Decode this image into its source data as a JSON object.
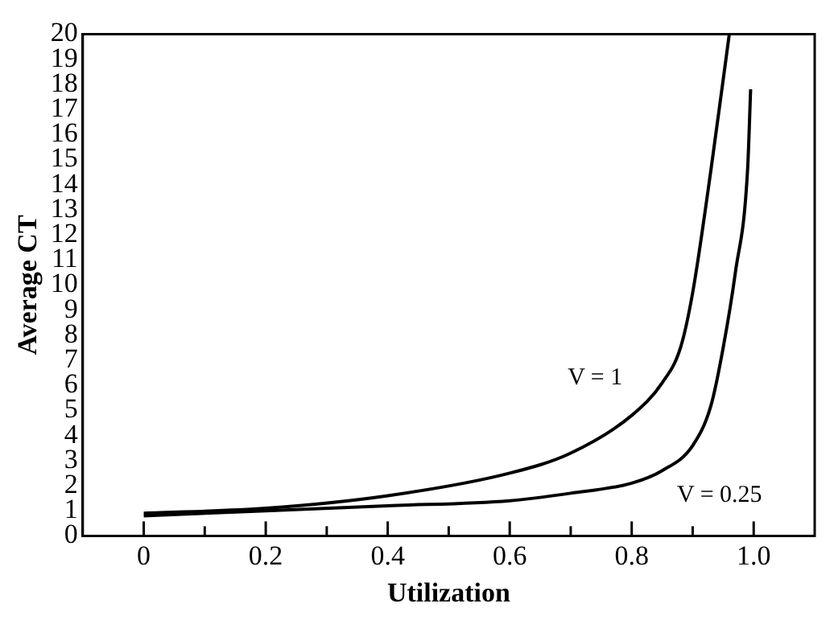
{
  "chart_data": {
    "type": "line",
    "xlabel": "Utilization",
    "ylabel": "Average CT",
    "series": [
      {
        "color": "#000000",
        "x": [
          0,
          0.2,
          0.4,
          0.6,
          0.7,
          0.8,
          0.85,
          0.88,
          0.9,
          0.93,
          0.96
        ],
        "values": [
          0.9,
          1.1,
          1.6,
          2.5,
          3.3,
          4.8,
          6.1,
          7.5,
          9.7,
          14.6,
          20
        ]
      },
      {
        "color": "#000000",
        "x": [
          0,
          0.2,
          0.4,
          0.6,
          0.7,
          0.8,
          0.85,
          0.9,
          0.93,
          0.95,
          0.97,
          0.99,
          0.995
        ],
        "values": [
          0.8,
          1.0,
          1.2,
          1.4,
          1.7,
          2.1,
          2.6,
          3.6,
          5.2,
          7.5,
          10.5,
          14.6,
          17.8
        ]
      }
    ],
    "annotations": [
      "V = 1",
      "V = 0.25"
    ],
    "xlim": [
      -0.1,
      1.1
    ],
    "xticks": [
      0,
      {
        "value": 0.1,
        "label": null
      },
      0.2,
      {
        "value": 0.3,
        "label": null
      },
      0.4,
      {
        "value": 0.5,
        "label": null
      },
      0.6,
      {
        "value": 0.7,
        "label": null
      },
      0.8,
      {
        "value": 0.9,
        "label": null
      },
      {
        "value": 1,
        "label": "1.0"
      }
    ],
    "ylim": [
      0,
      20
    ],
    "yticks": [
      0,
      1,
      2,
      3,
      4,
      5,
      6,
      7,
      8,
      9,
      10,
      11,
      12,
      13,
      14,
      15,
      16,
      17,
      18,
      19,
      20
    ],
    "grid": false,
    "legend": false,
    "marker": "none",
    "line_style": "solid"
  }
}
